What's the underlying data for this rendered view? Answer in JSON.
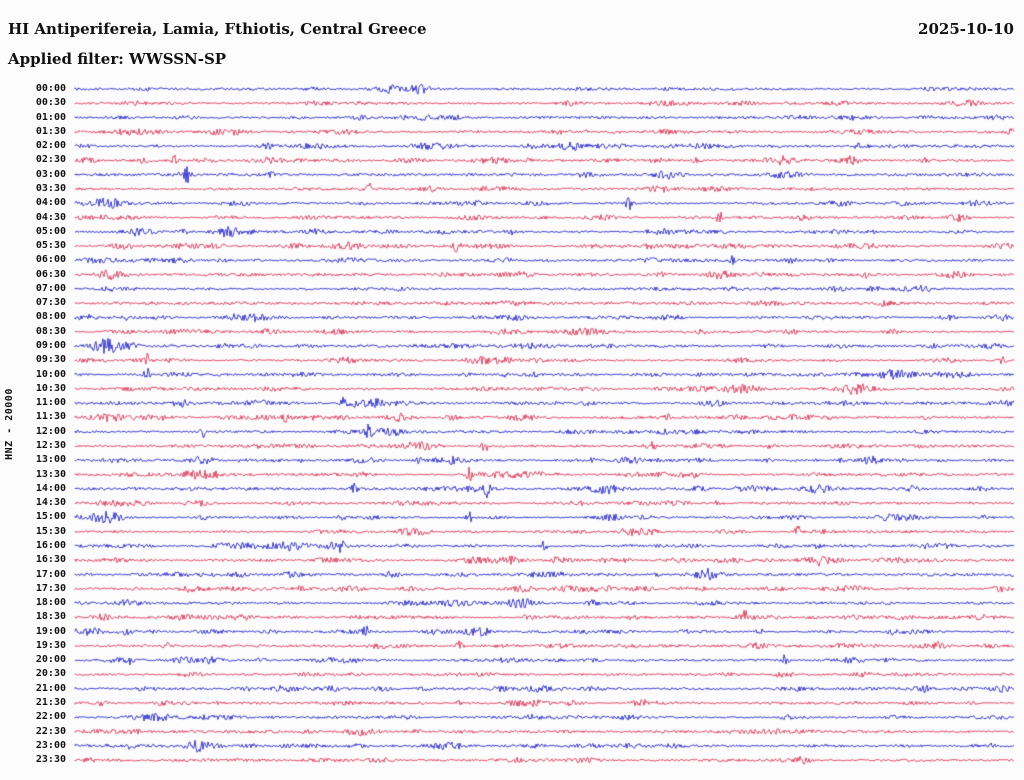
{
  "header": {
    "title": "HI Antiperifereia, Lamia, Fthiotis, Central Greece",
    "date": "2025-10-10",
    "filter_label": "Applied filter: WWSSN-SP"
  },
  "axis": {
    "channel_scale_label": "HNZ - 20000"
  },
  "chart_data": {
    "type": "line",
    "subtype": "helicorder-day-plot",
    "title": "HI Antiperifereia, Lamia, Fthiotis, Central Greece",
    "date": "2025-10-10",
    "channel": "HNZ",
    "amplitude_scale": 20000,
    "filter": "WWSSN-SP",
    "minutes_per_row": 30,
    "x_range_minutes": [
      0,
      30
    ],
    "legend": "none",
    "grid": false,
    "trace_colors": {
      "even_rows": "#0000c8",
      "odd_rows": "#dc143c"
    },
    "row_times": [
      "00:00",
      "00:30",
      "01:00",
      "01:30",
      "02:00",
      "02:30",
      "03:00",
      "03:30",
      "04:00",
      "04:30",
      "05:00",
      "05:30",
      "06:00",
      "06:30",
      "07:00",
      "07:30",
      "08:00",
      "08:30",
      "09:00",
      "09:30",
      "10:00",
      "10:30",
      "11:00",
      "11:30",
      "12:00",
      "12:30",
      "13:00",
      "13:30",
      "14:00",
      "14:30",
      "15:00",
      "15:30",
      "16:00",
      "16:30",
      "17:00",
      "17:30",
      "18:00",
      "18:30",
      "19:00",
      "19:30",
      "20:00",
      "20:30",
      "21:00",
      "21:30",
      "22:00",
      "22:30",
      "23:00",
      "23:30"
    ],
    "notable_events": [
      {
        "time": "02:30",
        "minute": 3.2,
        "amp": 6,
        "kind": "spike"
      },
      {
        "time": "03:00",
        "minute": 3.6,
        "amp": 6,
        "kind": "spike"
      },
      {
        "time": "03:30",
        "minute": 9.4,
        "amp": 5,
        "kind": "spike"
      },
      {
        "time": "04:00",
        "minute": 1.0,
        "amp": 5,
        "kind": "burst"
      },
      {
        "time": "04:00",
        "minute": 17.7,
        "amp": 8,
        "kind": "spike"
      },
      {
        "time": "04:30",
        "minute": 20.6,
        "amp": 6,
        "kind": "spike"
      },
      {
        "time": "05:00",
        "minute": 2.0,
        "amp": 4,
        "kind": "burst"
      },
      {
        "time": "05:30",
        "minute": 12.2,
        "amp": 7,
        "kind": "spike"
      },
      {
        "time": "06:00",
        "minute": 21.0,
        "amp": 5,
        "kind": "spike"
      },
      {
        "time": "06:30",
        "minute": 25.2,
        "amp": 5,
        "kind": "spike"
      },
      {
        "time": "09:00",
        "minute": 1.0,
        "amp": 6,
        "kind": "burst"
      },
      {
        "time": "09:30",
        "minute": 2.3,
        "amp": 6,
        "kind": "spike"
      },
      {
        "time": "09:30",
        "minute": 29.6,
        "amp": 6,
        "kind": "spike"
      },
      {
        "time": "10:00",
        "minute": 2.3,
        "amp": 7,
        "kind": "spike"
      },
      {
        "time": "10:30",
        "minute": 25.0,
        "amp": 5,
        "kind": "burst"
      },
      {
        "time": "11:00",
        "minute": 8.6,
        "amp": 6,
        "kind": "spike"
      },
      {
        "time": "11:30",
        "minute": 6.7,
        "amp": 5,
        "kind": "spike"
      },
      {
        "time": "12:00",
        "minute": 4.1,
        "amp": 5,
        "kind": "spike"
      },
      {
        "time": "12:00",
        "minute": 9.4,
        "amp": 7,
        "kind": "spike"
      },
      {
        "time": "12:30",
        "minute": 13.1,
        "amp": 6,
        "kind": "spike"
      },
      {
        "time": "12:30",
        "minute": 18.5,
        "amp": 5,
        "kind": "spike"
      },
      {
        "time": "13:00",
        "minute": 11.0,
        "amp": 6,
        "kind": "spike"
      },
      {
        "time": "13:30",
        "minute": 12.6,
        "amp": 7,
        "kind": "spike"
      },
      {
        "time": "14:00",
        "minute": 8.9,
        "amp": 6,
        "kind": "spike"
      },
      {
        "time": "14:00",
        "minute": 13.2,
        "amp": 8,
        "kind": "spike"
      },
      {
        "time": "15:00",
        "minute": 1.0,
        "amp": 6,
        "kind": "burst"
      },
      {
        "time": "15:00",
        "minute": 12.6,
        "amp": 5,
        "kind": "spike"
      },
      {
        "time": "15:30",
        "minute": 23.1,
        "amp": 6,
        "kind": "spike"
      },
      {
        "time": "16:00",
        "minute": 8.5,
        "amp": 5,
        "kind": "spike"
      },
      {
        "time": "16:00",
        "minute": 15.0,
        "amp": 6,
        "kind": "spike"
      },
      {
        "time": "17:30",
        "minute": 7.2,
        "amp": 5,
        "kind": "spike"
      },
      {
        "time": "18:00",
        "minute": 14.3,
        "amp": 5,
        "kind": "burst"
      },
      {
        "time": "18:30",
        "minute": 21.4,
        "amp": 6,
        "kind": "spike"
      },
      {
        "time": "19:00",
        "minute": 9.3,
        "amp": 6,
        "kind": "spike"
      },
      {
        "time": "19:30",
        "minute": 2.9,
        "amp": 5,
        "kind": "spike"
      },
      {
        "time": "19:30",
        "minute": 12.3,
        "amp": 6,
        "kind": "spike"
      },
      {
        "time": "20:00",
        "minute": 22.7,
        "amp": 7,
        "kind": "spike"
      },
      {
        "time": "23:00",
        "minute": 1.8,
        "amp": 6,
        "kind": "spike"
      }
    ]
  }
}
